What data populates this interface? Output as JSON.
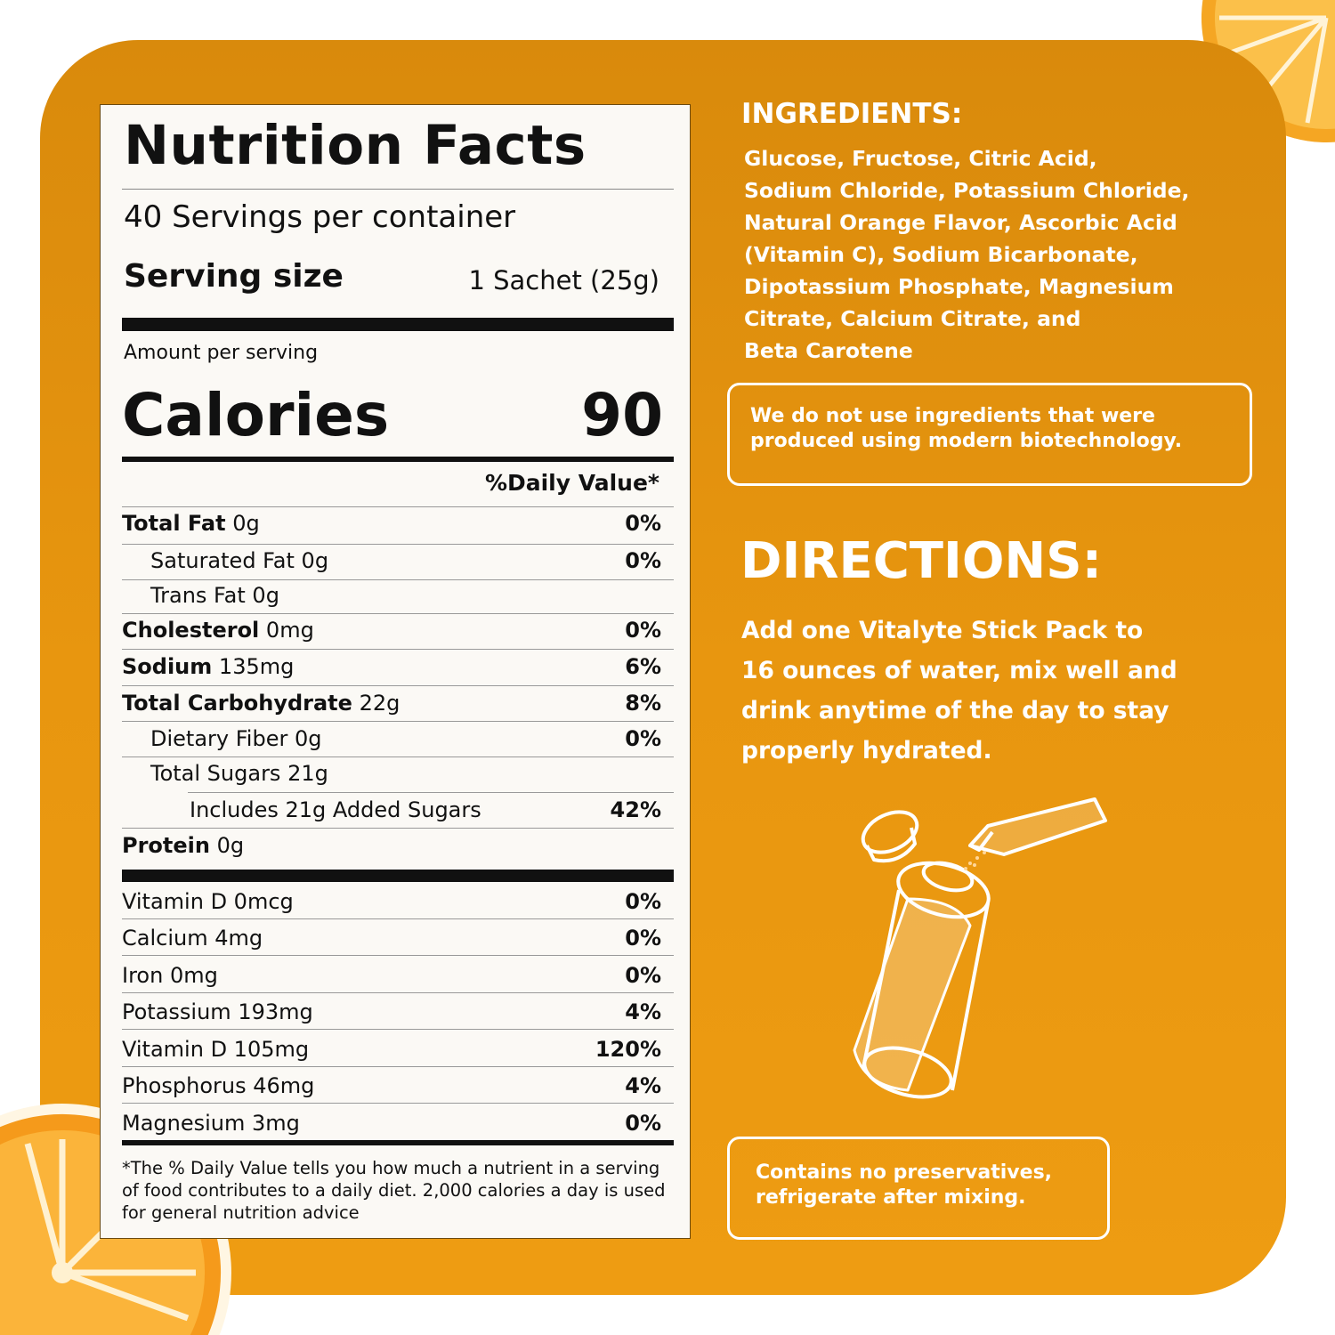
{
  "colors": {
    "panel": "#E8960F",
    "label_bg": "#FBF9F5",
    "text_dark": "#111111",
    "text_light": "#FFFFFF"
  },
  "nutrition": {
    "title": "Nutrition Facts",
    "servings": "40 Servings per container",
    "serving_size_label": "Serving size",
    "serving_size_value": "1 Sachet (25g)",
    "amount_per_serving": "Amount per serving",
    "calories_label": "Calories",
    "calories_value": "90",
    "dv_header": "%Daily Value*",
    "rows": [
      {
        "name": "Total Fat",
        "amount": "0g",
        "dv": "0%"
      },
      {
        "name": "Saturated Fat",
        "amount": "0g",
        "dv": "0%"
      },
      {
        "name": "Trans Fat",
        "amount": "0g",
        "dv": ""
      },
      {
        "name": "Cholesterol",
        "amount": "0mg",
        "dv": "0%"
      },
      {
        "name": "Sodium",
        "amount": "135mg",
        "dv": "6%"
      },
      {
        "name": "Total Carbohydrate",
        "amount": "22g",
        "dv": "8%"
      },
      {
        "name": "Dietary Fiber",
        "amount": "0g",
        "dv": "0%"
      },
      {
        "name": "Total Sugars",
        "amount": "21g",
        "dv": ""
      },
      {
        "name": "Includes 21g Added Sugars",
        "amount": "",
        "dv": "42%"
      },
      {
        "name": "Protein",
        "amount": "0g",
        "dv": ""
      }
    ],
    "micros": [
      {
        "label": "Vitamin D 0mcg",
        "dv": "0%"
      },
      {
        "label": "Calcium 4mg",
        "dv": "0%"
      },
      {
        "label": "Iron 0mg",
        "dv": "0%"
      },
      {
        "label": "Potassium 193mg",
        "dv": "4%"
      },
      {
        "label": "Vitamin D 105mg",
        "dv": "120%"
      },
      {
        "label": "Phosphorus 46mg",
        "dv": "4%"
      },
      {
        "label": "Magnesium 3mg",
        "dv": "0%"
      }
    ],
    "footnote": "*The % Daily Value tells you how much a nutrient in a serving of food contributes to a daily diet. 2,000 calories a day is used for general nutrition advice"
  },
  "ingredients": {
    "heading": "INGREDIENTS:",
    "lines": [
      "Glucose, Fructose, Citric Acid,",
      "Sodium Chloride, Potassium Chloride,",
      "Natural Orange Flavor, Ascorbic Acid",
      "(Vitamin C), Sodium Bicarbonate,",
      "Dipotassium Phosphate, Magnesium",
      "Citrate, Calcium Citrate, and",
      "Beta Carotene"
    ],
    "notice_lines": [
      "We do not use ingredients that were",
      "produced using modern biotechnology."
    ]
  },
  "directions": {
    "heading": "DIRECTIONS:",
    "lines": [
      "Add one Vitalyte Stick Pack to",
      "16 ounces of water, mix well and",
      "drink anytime of the day to stay",
      "properly hydrated."
    ],
    "notice_lines": [
      "Contains no preservatives,",
      "refrigerate after mixing."
    ]
  }
}
